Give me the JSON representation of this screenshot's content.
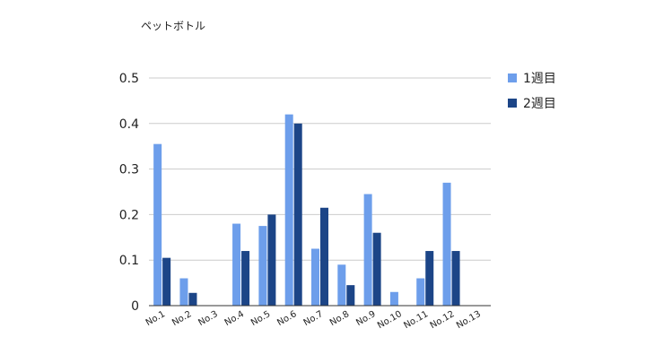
{
  "chart_data": {
    "type": "bar",
    "title": "ペットボトル",
    "categories": [
      "No.1",
      "No.2",
      "No.3",
      "No.4",
      "No.5",
      "No.6",
      "No.7",
      "No.8",
      "No.9",
      "No.10",
      "No.11",
      "No.12",
      "No.13"
    ],
    "series": [
      {
        "name": "1週目",
        "color": "#6d9eeb",
        "values": [
          0.355,
          0.06,
          0,
          0.18,
          0.175,
          0.42,
          0.125,
          0.09,
          0.245,
          0.03,
          0.06,
          0.27,
          0
        ]
      },
      {
        "name": "2週目",
        "color": "#1c4587",
        "values": [
          0.105,
          0.028,
          0,
          0.12,
          0.2,
          0.4,
          0.215,
          0.045,
          0.16,
          0,
          0.12,
          0.12,
          0
        ]
      }
    ],
    "yticks": [
      "0",
      "0.1",
      "0.2",
      "0.3",
      "0.4",
      "0.5"
    ],
    "ylim": [
      0,
      0.5
    ],
    "grid": true,
    "legend": "right"
  }
}
